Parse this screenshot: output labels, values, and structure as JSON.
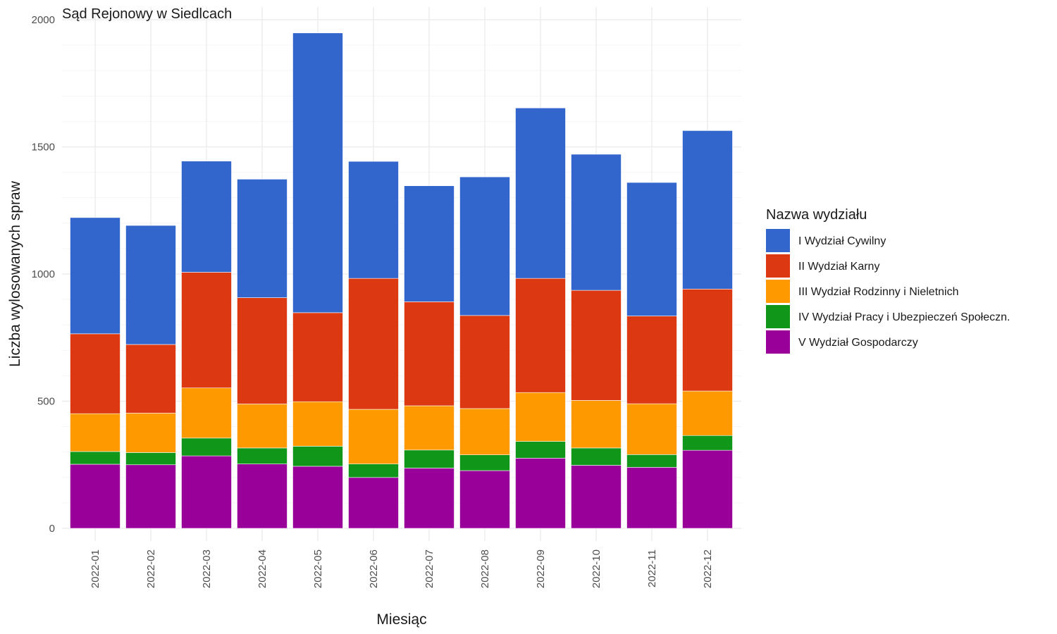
{
  "chart_data": {
    "type": "bar",
    "stacked": true,
    "title": "Sąd Rejonowy w Siedlcach",
    "xlabel": "Miesiąc",
    "ylabel": "Liczba wylosowanych spraw",
    "ylim": [
      0,
      2000
    ],
    "yticks": [
      0,
      500,
      1000,
      1500,
      2000
    ],
    "grid": true,
    "legend_title": "Nazwa wydziału",
    "legend_position": "right",
    "categories": [
      "2022-01",
      "2022-02",
      "2022-03",
      "2022-04",
      "2022-05",
      "2022-06",
      "2022-07",
      "2022-08",
      "2022-09",
      "2022-10",
      "2022-11",
      "2022-12"
    ],
    "series": [
      {
        "name": "V Wydział Gospodarczy",
        "color": "#990099",
        "values": [
          252,
          250,
          285,
          253,
          244,
          200,
          237,
          227,
          276,
          248,
          240,
          307
        ]
      },
      {
        "name": "IV Wydział Pracy i Ubezpieczeń Społeczn.",
        "color": "#109618",
        "values": [
          50,
          48,
          70,
          63,
          79,
          53,
          71,
          62,
          66,
          68,
          50,
          58
        ]
      },
      {
        "name": "III Wydział Rodzinny i Nieletnich",
        "color": "#ff9900",
        "values": [
          149,
          155,
          197,
          173,
          175,
          215,
          174,
          182,
          192,
          187,
          200,
          175
        ]
      },
      {
        "name": "II Wydział Karny",
        "color": "#dc3912",
        "values": [
          314,
          270,
          455,
          418,
          350,
          515,
          409,
          366,
          449,
          433,
          345,
          401
        ]
      },
      {
        "name": "I Wydział Cywilny",
        "color": "#3366cc",
        "values": [
          457,
          468,
          437,
          466,
          1100,
          460,
          456,
          545,
          670,
          535,
          525,
          623
        ]
      }
    ],
    "legend_order": [
      "I Wydział Cywilny",
      "II Wydział Karny",
      "III Wydział Rodzinny i Nieletnich",
      "IV Wydział Pracy i Ubezpieczeń Społeczn.",
      "V Wydział Gospodarczy"
    ]
  }
}
